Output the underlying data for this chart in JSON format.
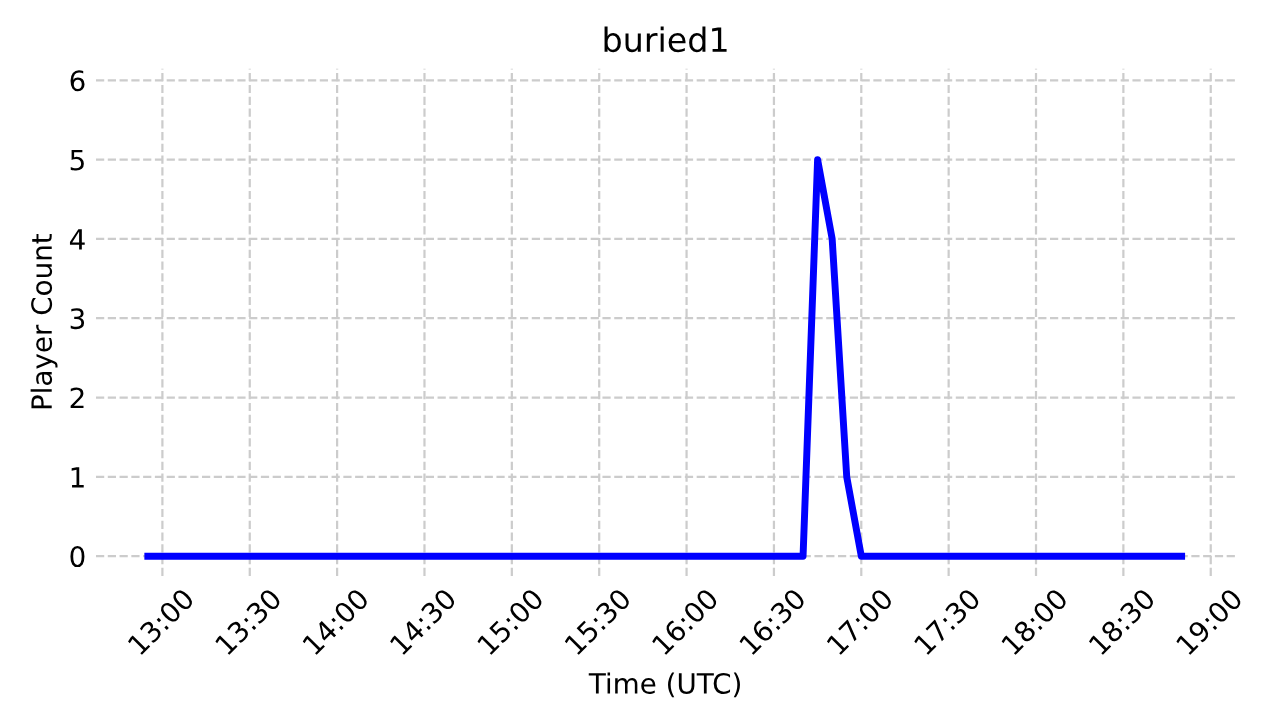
{
  "chart_data": {
    "type": "line",
    "title": "buried1",
    "xlabel": "Time (UTC)",
    "ylabel": "Player Count",
    "x": [
      12.9167,
      16.6667,
      16.75,
      16.8333,
      16.9167,
      17.0,
      18.8333
    ],
    "series": [
      {
        "color": "#0000ff",
        "values": [
          0,
          0,
          5,
          4,
          1,
          0,
          0
        ]
      }
    ],
    "xlim": [
      12.62,
      19.14
    ],
    "xticks": [
      {
        "value": 13,
        "label": "13:00"
      },
      {
        "value": 13.5,
        "label": "13:30"
      },
      {
        "value": 14,
        "label": "14:00"
      },
      {
        "value": 14.5,
        "label": "14:30"
      },
      {
        "value": 15,
        "label": "15:00"
      },
      {
        "value": 15.5,
        "label": "15:30"
      },
      {
        "value": 16,
        "label": "16:00"
      },
      {
        "value": 16.5,
        "label": "16:30"
      },
      {
        "value": 17,
        "label": "17:00"
      },
      {
        "value": 17.5,
        "label": "17:30"
      },
      {
        "value": 18,
        "label": "18:00"
      },
      {
        "value": 18.5,
        "label": "18:30"
      },
      {
        "value": 19,
        "label": "19:00"
      }
    ],
    "ylim": [
      -0.25,
      6.15
    ],
    "yticks": [
      0,
      1,
      2,
      3,
      4,
      5,
      6
    ],
    "grid": true,
    "line_style": "solid",
    "marker": "none"
  }
}
